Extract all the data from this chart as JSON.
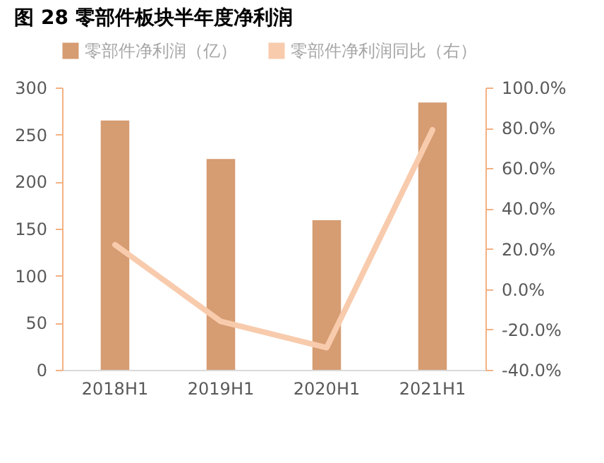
{
  "chart_data": {
    "type": "bar",
    "title": "图 28 零部件板块半年度净利润",
    "categories": [
      "2018H1",
      "2019H1",
      "2020H1",
      "2021H1"
    ],
    "series": [
      {
        "name": "零部件净利润（亿）",
        "color": "#d69c72",
        "values": [
          265,
          224,
          159,
          284
        ]
      },
      {
        "name": "零部件净利润同比（右）",
        "type": "line",
        "axis": "y2",
        "color": "#f8cbad",
        "values": [
          22,
          -16,
          -29,
          79
        ]
      }
    ],
    "ylim": [
      0,
      300
    ],
    "yticks": [
      0,
      50,
      100,
      150,
      200,
      250,
      300
    ],
    "y2lim": [
      -40,
      100
    ],
    "y2ticks": [
      {
        "value": -40,
        "label": "-40.0%"
      },
      {
        "value": -20,
        "label": "-20.0%"
      },
      {
        "value": 0,
        "label": "0.0%"
      },
      {
        "value": 20,
        "label": "20.0%"
      },
      {
        "value": 40,
        "label": "40.0%"
      },
      {
        "value": 60,
        "label": "60.0%"
      },
      {
        "value": 80,
        "label": "80.0%"
      },
      {
        "value": 100,
        "label": "100.0%"
      }
    ],
    "legend": "top",
    "grid": false
  }
}
